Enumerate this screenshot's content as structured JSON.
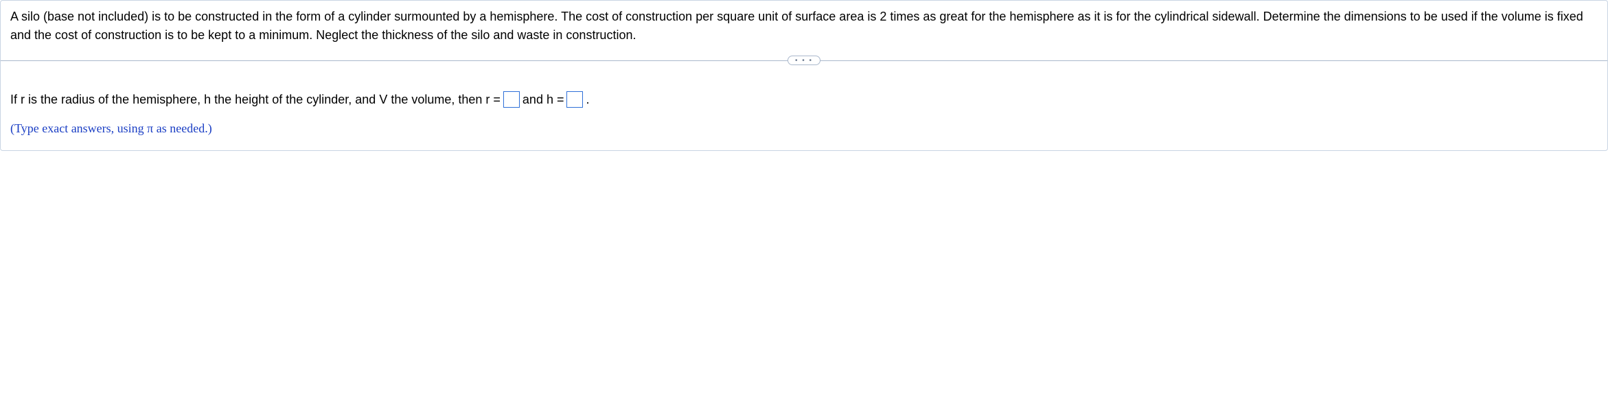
{
  "problem": {
    "text": "A silo (base not included) is to be constructed in the form of a cylinder surmounted by a hemisphere. The cost of construction per square unit of surface area is 2 times as great for the hemisphere as it is for the cylindrical sidewall. Determine the dimensions to be used if the volume is fixed and the cost of construction is to be kept to a minimum. Neglect the thickness of the silo and waste in construction."
  },
  "divider": {
    "dots": "• • •"
  },
  "answer": {
    "prefix": "If r is the radius of the hemisphere, h the height of the cylinder, and V the volume, then r =",
    "middle": " and h =",
    "suffix": ".",
    "r_value": "",
    "h_value": "",
    "hint": "(Type exact answers, using π as needed.)"
  },
  "colors": {
    "border": "#c8d4e3",
    "divider": "#aab8cc",
    "hint": "#1a3ec4",
    "input_border": "#2e6fd8"
  }
}
